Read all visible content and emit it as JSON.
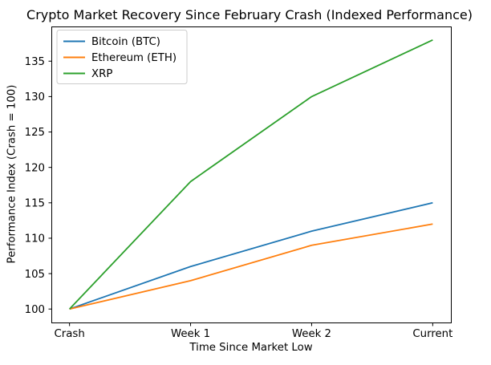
{
  "title": "Crypto Market Recovery Since February Crash (Indexed Performance)",
  "chart_data": {
    "type": "line",
    "title": "Crypto Market Recovery Since February Crash (Indexed Performance)",
    "xlabel": "Time Since Market Low",
    "ylabel": "Performance Index (Crash = 100)",
    "categories": [
      "Crash",
      "Week 1",
      "Week 2",
      "Current"
    ],
    "series": [
      {
        "name": "Bitcoin (BTC)",
        "color": "#1f77b4",
        "values": [
          100,
          106,
          111,
          115
        ]
      },
      {
        "name": "Ethereum (ETH)",
        "color": "#ff7f0e",
        "values": [
          100,
          104,
          109,
          112
        ]
      },
      {
        "name": "XRP",
        "color": "#2ca02c",
        "values": [
          100,
          118,
          130,
          138
        ]
      }
    ],
    "y_ticks": [
      100,
      105,
      110,
      115,
      120,
      125,
      130,
      135
    ],
    "ylim": [
      98.1,
      139.9
    ],
    "xlim": [
      -0.15,
      3.15
    ],
    "grid": false,
    "legend_position": "upper left",
    "colors": {
      "spine": "#000000",
      "text": "#000000",
      "legend_border": "#cccccc",
      "background": "#ffffff"
    }
  }
}
